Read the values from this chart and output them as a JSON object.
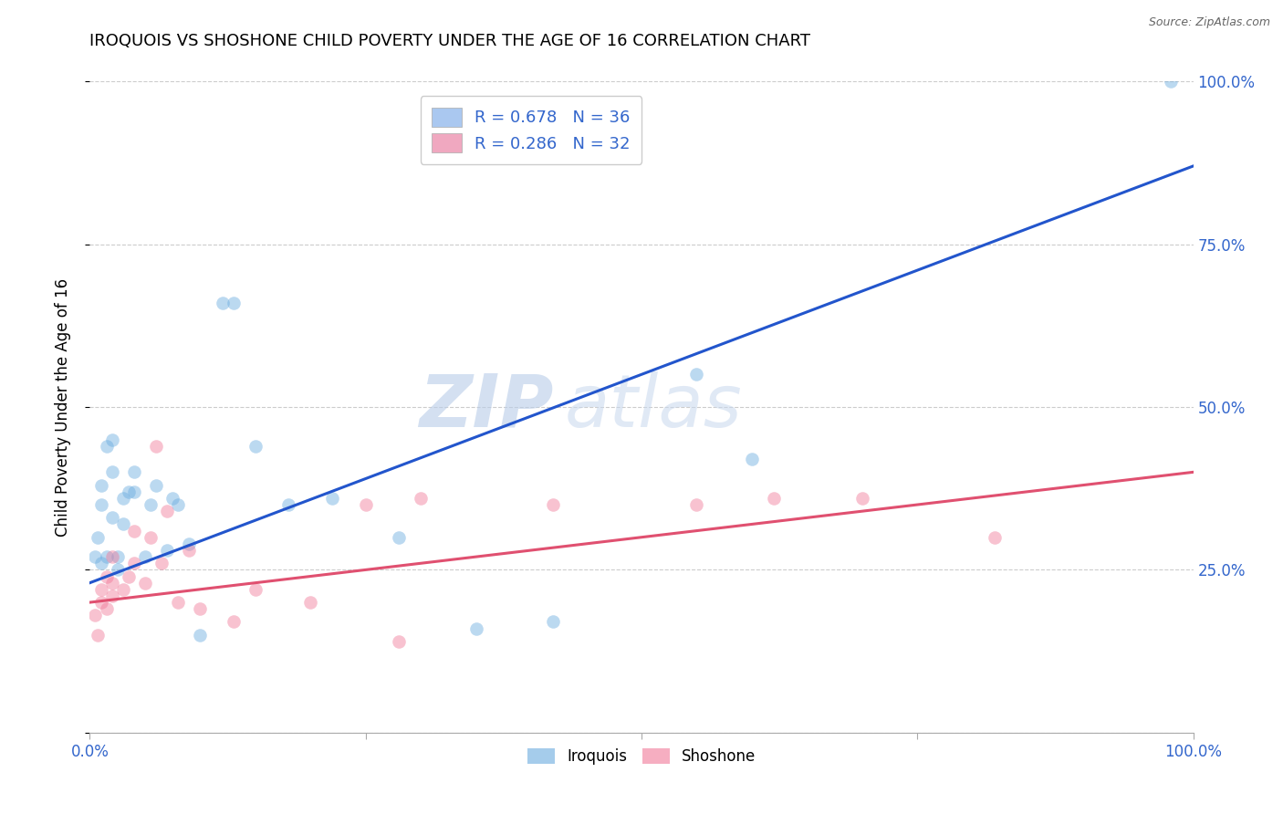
{
  "title": "IROQUOIS VS SHOSHONE CHILD POVERTY UNDER THE AGE OF 16 CORRELATION CHART",
  "source": "Source: ZipAtlas.com",
  "ylabel": "Child Poverty Under the Age of 16",
  "xlim": [
    0,
    1
  ],
  "ylim": [
    0,
    1
  ],
  "xticks": [
    0.0,
    0.25,
    0.5,
    0.75,
    1.0
  ],
  "yticks": [
    0.0,
    0.25,
    0.5,
    0.75,
    1.0
  ],
  "xticklabels": [
    "0.0%",
    "",
    "",
    "",
    "100.0%"
  ],
  "right_yticklabels": [
    "",
    "25.0%",
    "50.0%",
    "75.0%",
    "100.0%"
  ],
  "watermark_line1": "ZIP",
  "watermark_line2": "atlas",
  "legend_entries": [
    {
      "label": "R = 0.678   N = 36",
      "color": "#aac8f0"
    },
    {
      "label": "R = 0.286   N = 32",
      "color": "#f0a8c0"
    }
  ],
  "legend_labels": [
    "Iroquois",
    "Shoshone"
  ],
  "iroquois_color": "#6aabdf",
  "shoshone_color": "#f07898",
  "iroquois_line_color": "#2255cc",
  "shoshone_line_color": "#e05070",
  "iroquois_x": [
    0.005,
    0.007,
    0.01,
    0.01,
    0.01,
    0.015,
    0.015,
    0.02,
    0.02,
    0.02,
    0.025,
    0.025,
    0.03,
    0.03,
    0.035,
    0.04,
    0.04,
    0.05,
    0.055,
    0.06,
    0.07,
    0.075,
    0.08,
    0.09,
    0.1,
    0.12,
    0.13,
    0.15,
    0.18,
    0.22,
    0.28,
    0.35,
    0.42,
    0.55,
    0.6,
    0.98
  ],
  "iroquois_y": [
    0.27,
    0.3,
    0.26,
    0.35,
    0.38,
    0.27,
    0.44,
    0.33,
    0.4,
    0.45,
    0.25,
    0.27,
    0.32,
    0.36,
    0.37,
    0.37,
    0.4,
    0.27,
    0.35,
    0.38,
    0.28,
    0.36,
    0.35,
    0.29,
    0.15,
    0.66,
    0.66,
    0.44,
    0.35,
    0.36,
    0.3,
    0.16,
    0.17,
    0.55,
    0.42,
    1.0
  ],
  "shoshone_x": [
    0.005,
    0.007,
    0.01,
    0.01,
    0.015,
    0.015,
    0.02,
    0.02,
    0.02,
    0.03,
    0.035,
    0.04,
    0.04,
    0.05,
    0.055,
    0.06,
    0.065,
    0.07,
    0.08,
    0.09,
    0.1,
    0.13,
    0.15,
    0.2,
    0.25,
    0.28,
    0.3,
    0.42,
    0.55,
    0.62,
    0.7,
    0.82
  ],
  "shoshone_y": [
    0.18,
    0.15,
    0.2,
    0.22,
    0.19,
    0.24,
    0.21,
    0.23,
    0.27,
    0.22,
    0.24,
    0.26,
    0.31,
    0.23,
    0.3,
    0.44,
    0.26,
    0.34,
    0.2,
    0.28,
    0.19,
    0.17,
    0.22,
    0.2,
    0.35,
    0.14,
    0.36,
    0.35,
    0.35,
    0.36,
    0.36,
    0.3
  ],
  "iroquois_line_x0": 0.0,
  "iroquois_line_y0": 0.23,
  "iroquois_line_x1": 1.0,
  "iroquois_line_y1": 0.87,
  "shoshone_line_x0": 0.0,
  "shoshone_line_y0": 0.2,
  "shoshone_line_x1": 1.0,
  "shoshone_line_y1": 0.4,
  "background_color": "#ffffff",
  "grid_color": "#cccccc",
  "marker_size": 110,
  "marker_alpha": 0.45
}
